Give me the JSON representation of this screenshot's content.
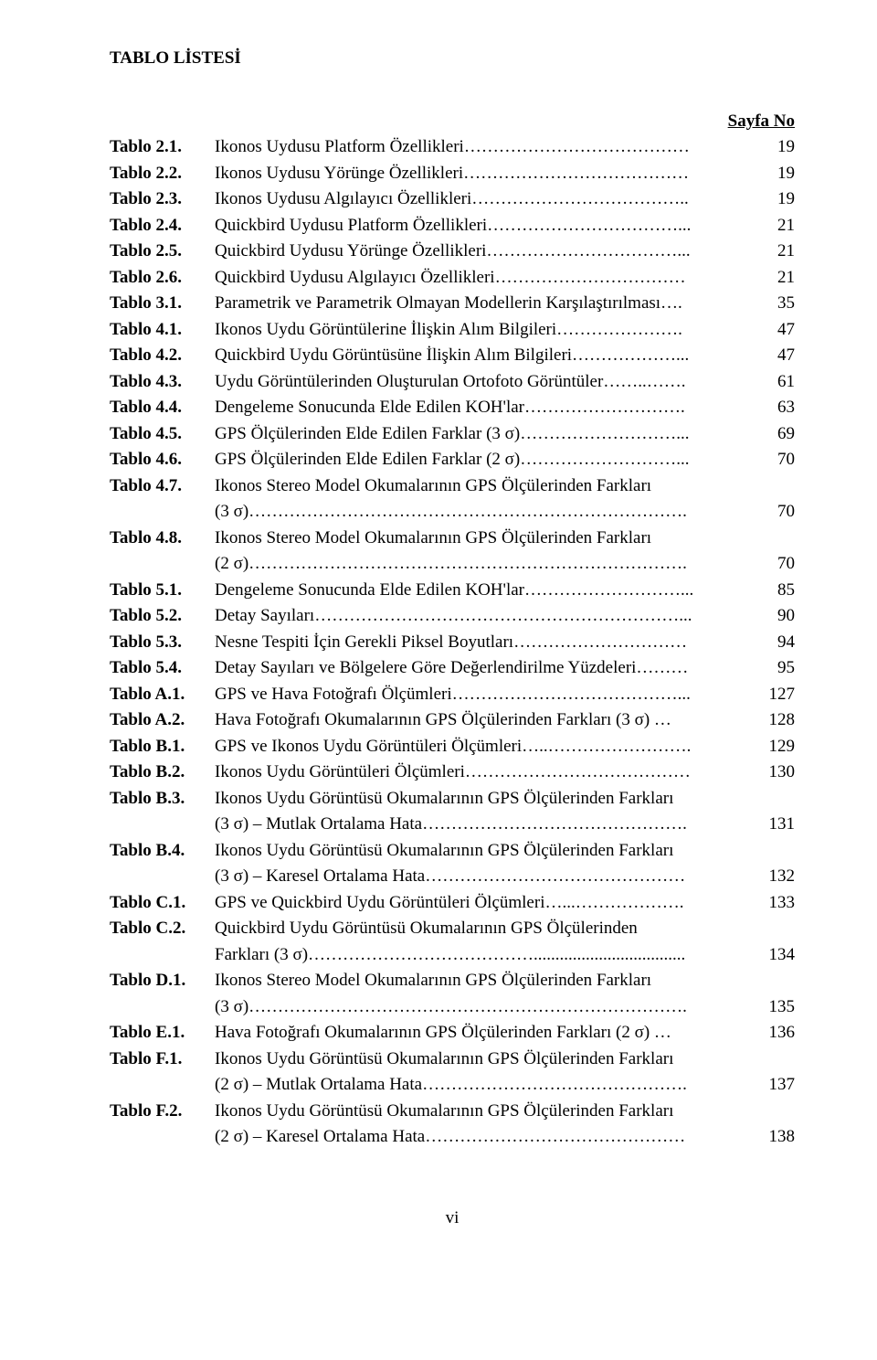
{
  "title": "TABLO LİSTESİ",
  "sayfa_heading": "Sayfa No",
  "footer": "vi",
  "rows": [
    {
      "label": "Tablo 2.1.",
      "lines": [
        "Ikonos Uydusu Platform Özellikleri…………………………………"
      ],
      "page": "19"
    },
    {
      "label": "Tablo 2.2.",
      "lines": [
        "Ikonos Uydusu Yörünge Özellikleri…………………………………"
      ],
      "page": "19"
    },
    {
      "label": "Tablo 2.3.",
      "lines": [
        "Ikonos Uydusu Algılayıcı Özellikleri……………………………….."
      ],
      "page": "19"
    },
    {
      "label": "Tablo 2.4.",
      "lines": [
        "Quickbird Uydusu Platform Özellikleri……………………………..."
      ],
      "page": "21"
    },
    {
      "label": "Tablo 2.5.",
      "lines": [
        "Quickbird Uydusu Yörünge Özellikleri……………………………..."
      ],
      "page": "21"
    },
    {
      "label": "Tablo 2.6.",
      "lines": [
        "Quickbird Uydusu Algılayıcı Özellikleri……………………………"
      ],
      "page": "21"
    },
    {
      "label": "Tablo 3.1.",
      "lines": [
        "Parametrik ve Parametrik Olmayan Modellerin Karşılaştırılması…."
      ],
      "page": "35"
    },
    {
      "label": "Tablo 4.1.",
      "lines": [
        "Ikonos Uydu Görüntülerine İlişkin Alım Bilgileri…………………."
      ],
      "page": "47"
    },
    {
      "label": "Tablo 4.2.",
      "lines": [
        "Quickbird Uydu Görüntüsüne İlişkin Alım Bilgileri………………..."
      ],
      "page": "47"
    },
    {
      "label": "Tablo 4.3.",
      "lines": [
        "Uydu Görüntülerinden Oluşturulan Ortofoto Görüntüler……..……."
      ],
      "page": "61"
    },
    {
      "label": "Tablo 4.4.",
      "lines": [
        "Dengeleme Sonucunda Elde Edilen KOH'lar………………………."
      ],
      "page": "63"
    },
    {
      "label": "Tablo 4.5.",
      "lines": [
        "GPS Ölçülerinden Elde Edilen Farklar (3 σ)………………………..."
      ],
      "page": "69"
    },
    {
      "label": "Tablo 4.6.",
      "lines": [
        "GPS Ölçülerinden Elde Edilen Farklar (2 σ)………………………..."
      ],
      "page": "70"
    },
    {
      "label": "Tablo 4.7.",
      "lines": [
        "Ikonos Stereo Model Okumalarının GPS Ölçülerinden Farkları",
        "(3 σ)…………………………………………………………………."
      ],
      "page": "70"
    },
    {
      "label": "Tablo 4.8.",
      "lines": [
        "Ikonos Stereo Model Okumalarının GPS Ölçülerinden Farkları",
        "(2 σ)…………………………………………………………………."
      ],
      "page": "70"
    },
    {
      "label": "Tablo 5.1.",
      "lines": [
        "Dengeleme Sonucunda Elde Edilen KOH'lar………………………..."
      ],
      "page": "85"
    },
    {
      "label": "Tablo 5.2.",
      "lines": [
        "Detay Sayıları………………………………………………………..."
      ],
      "page": "90"
    },
    {
      "label": "Tablo 5.3.",
      "lines": [
        "Nesne Tespiti İçin Gerekli Piksel Boyutları…………………………"
      ],
      "page": "94"
    },
    {
      "label": "Tablo 5.4.",
      "lines": [
        "Detay Sayıları ve Bölgelere Göre Değerlendirilme Yüzdeleri………"
      ],
      "page": "95"
    },
    {
      "label": "Tablo A.1.",
      "lines": [
        "GPS ve Hava Fotoğrafı Ölçümleri…………………………………..."
      ],
      "page": "127"
    },
    {
      "label": "Tablo A.2.",
      "lines": [
        "Hava Fotoğrafı Okumalarının GPS Ölçülerinden Farkları (3 σ) …"
      ],
      "page": "128"
    },
    {
      "label": "Tablo B.1.",
      "lines": [
        "GPS ve Ikonos Uydu Görüntüleri Ölçümleri…..……………………."
      ],
      "page": "129"
    },
    {
      "label": "Tablo B.2.",
      "lines": [
        "Ikonos Uydu Görüntüleri Ölçümleri…………………………………"
      ],
      "page": "130"
    },
    {
      "label": "Tablo B.3.",
      "lines": [
        "Ikonos Uydu Görüntüsü Okumalarının GPS Ölçülerinden Farkları",
        "(3 σ) – Mutlak Ortalama Hata………………………………………."
      ],
      "page": "131"
    },
    {
      "label": "Tablo B.4.",
      "lines": [
        "Ikonos Uydu Görüntüsü Okumalarının GPS Ölçülerinden Farkları",
        "(3 σ) – Karesel Ortalama Hata………………………………………"
      ],
      "page": "132"
    },
    {
      "label": "Tablo C.1.",
      "lines": [
        "GPS ve Quickbird Uydu Görüntüleri Ölçümleri…...………………."
      ],
      "page": "133"
    },
    {
      "label": "Tablo C.2.",
      "lines": [
        "Quickbird Uydu Görüntüsü Okumalarının GPS Ölçülerinden",
        "Farkları (3 σ)…………………………………..................................."
      ],
      "page": "134"
    },
    {
      "label": "Tablo D.1.",
      "lines": [
        "Ikonos Stereo Model Okumalarının GPS Ölçülerinden Farkları",
        "(3 σ)…………………………………………………………………."
      ],
      "page": "135"
    },
    {
      "label": "Tablo E.1.",
      "lines": [
        "Hava Fotoğrafı Okumalarının GPS Ölçülerinden Farkları (2 σ) …"
      ],
      "page": "136"
    },
    {
      "label": "Tablo F.1.",
      "lines": [
        "Ikonos Uydu Görüntüsü Okumalarının GPS Ölçülerinden Farkları",
        "(2 σ) – Mutlak Ortalama Hata………………………………………."
      ],
      "page": "137"
    },
    {
      "label": "Tablo F.2.",
      "lines": [
        "Ikonos Uydu Görüntüsü Okumalarının GPS Ölçülerinden Farkları",
        "(2 σ) – Karesel Ortalama Hata………………………………………"
      ],
      "page": "138"
    }
  ]
}
